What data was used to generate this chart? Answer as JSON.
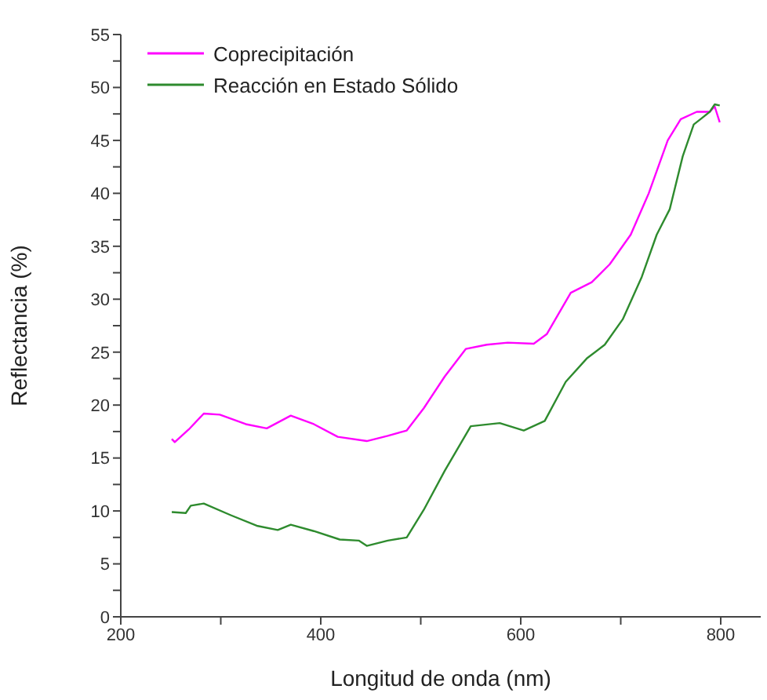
{
  "chart_data": {
    "type": "line",
    "xlabel": "Longitud de onda (nm)",
    "ylabel": "Reflectancia (%)",
    "xlim": [
      200,
      840
    ],
    "xticks": [
      200,
      {
        "value": 300,
        "label": null
      },
      400,
      {
        "value": 500,
        "label": null
      },
      600,
      {
        "value": 700,
        "label": null
      },
      800
    ],
    "ylim": [
      0,
      55
    ],
    "yticks": [
      0,
      {
        "value": 2.5,
        "label": null
      },
      5,
      {
        "value": 7.5,
        "label": null
      },
      10,
      {
        "value": 12.5,
        "label": null
      },
      15,
      {
        "value": 17.5,
        "label": null
      },
      20,
      {
        "value": 22.5,
        "label": null
      },
      25,
      {
        "value": 27.5,
        "label": null
      },
      30,
      {
        "value": 32.5,
        "label": null
      },
      35,
      {
        "value": 37.5,
        "label": null
      },
      40,
      {
        "value": 42.5,
        "label": null
      },
      45,
      {
        "value": 47.5,
        "label": null
      },
      50,
      {
        "value": 52.5,
        "label": null
      },
      55
    ],
    "grid": false,
    "legend": "top left",
    "marker": "none",
    "line_style": "solid",
    "series": [
      {
        "name": "Coprecipitación",
        "color": "#ff00ff",
        "x": [
          251,
          254,
          268,
          283,
          299,
          325,
          346,
          370,
          393,
          417,
          446,
          467,
          486,
          503,
          524,
          545,
          566,
          587,
          613,
          626,
          650,
          671,
          689,
          710,
          728,
          747,
          760,
          776,
          789,
          794,
          799
        ],
        "values": [
          16.8,
          16.5,
          17.7,
          19.2,
          19.1,
          18.2,
          17.8,
          19.0,
          18.2,
          17.0,
          16.6,
          17.1,
          17.6,
          19.7,
          22.7,
          25.3,
          25.7,
          25.9,
          25.8,
          26.7,
          30.6,
          31.6,
          33.3,
          36.1,
          40.0,
          45.0,
          47.0,
          47.7,
          47.7,
          48.2,
          46.7
        ]
      },
      {
        "name": "Reacción en Estado Sólido",
        "color": "#2e8b2e",
        "x": [
          251,
          265,
          270,
          283,
          310,
          336,
          357,
          370,
          393,
          419,
          438,
          446,
          467,
          486,
          503,
          524,
          550,
          579,
          603,
          624,
          645,
          666,
          684,
          702,
          721,
          736,
          749,
          762,
          773,
          781,
          789,
          794,
          799
        ],
        "values": [
          9.9,
          9.8,
          10.5,
          10.7,
          9.6,
          8.6,
          8.2,
          8.7,
          8.1,
          7.3,
          7.2,
          6.7,
          7.2,
          7.5,
          10.1,
          13.8,
          18.0,
          18.3,
          17.6,
          18.5,
          22.2,
          24.4,
          25.7,
          28.1,
          32.1,
          36.1,
          38.5,
          43.5,
          46.5,
          47.1,
          47.7,
          48.4,
          48.3
        ]
      }
    ]
  }
}
